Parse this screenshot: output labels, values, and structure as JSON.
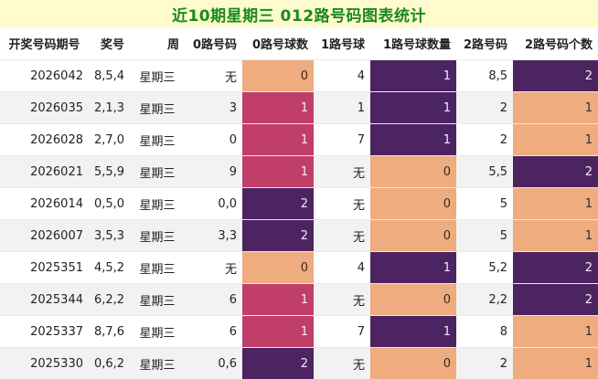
{
  "title": "近10期星期三 012路号码图表统计",
  "colors": {
    "peach": "#eeac7f",
    "rose": "#c13e68",
    "plum": "#4c2462",
    "title_text": "#1c8a1c",
    "title_bg": "#fffbcf"
  },
  "headers": [
    "开奖号码期号",
    "奖号",
    "周",
    "0路号码",
    "0路号球数",
    "1路号球",
    "1路号球数量",
    "2路号码",
    "2路号码个数"
  ],
  "rows": [
    {
      "issue": "2026042",
      "nums": "8,5,4",
      "week": "星期三",
      "r0": "无",
      "r0c": "0",
      "r1": "4",
      "r1c": "1",
      "r2": "8,5",
      "r2c": "2"
    },
    {
      "issue": "2026035",
      "nums": "2,1,3",
      "week": "星期三",
      "r0": "3",
      "r0c": "1",
      "r1": "1",
      "r1c": "1",
      "r2": "2",
      "r2c": "1"
    },
    {
      "issue": "2026028",
      "nums": "2,7,0",
      "week": "星期三",
      "r0": "0",
      "r0c": "1",
      "r1": "7",
      "r1c": "1",
      "r2": "2",
      "r2c": "1"
    },
    {
      "issue": "2026021",
      "nums": "5,5,9",
      "week": "星期三",
      "r0": "9",
      "r0c": "1",
      "r1": "无",
      "r1c": "0",
      "r2": "5,5",
      "r2c": "2"
    },
    {
      "issue": "2026014",
      "nums": "0,5,0",
      "week": "星期三",
      "r0": "0,0",
      "r0c": "2",
      "r1": "无",
      "r1c": "0",
      "r2": "5",
      "r2c": "1"
    },
    {
      "issue": "2026007",
      "nums": "3,5,3",
      "week": "星期三",
      "r0": "3,3",
      "r0c": "2",
      "r1": "无",
      "r1c": "0",
      "r2": "5",
      "r2c": "1"
    },
    {
      "issue": "2025351",
      "nums": "4,5,2",
      "week": "星期三",
      "r0": "无",
      "r0c": "0",
      "r1": "4",
      "r1c": "1",
      "r2": "5,2",
      "r2c": "2"
    },
    {
      "issue": "2025344",
      "nums": "6,2,2",
      "week": "星期三",
      "r0": "6",
      "r0c": "1",
      "r1": "无",
      "r1c": "0",
      "r2": "2,2",
      "r2c": "2"
    },
    {
      "issue": "2025337",
      "nums": "8,7,6",
      "week": "星期三",
      "r0": "6",
      "r0c": "1",
      "r1": "7",
      "r1c": "1",
      "r2": "8",
      "r2c": "1"
    },
    {
      "issue": "2025330",
      "nums": "0,6,2",
      "week": "星期三",
      "r0": "0,6",
      "r0c": "2",
      "r1": "无",
      "r1c": "0",
      "r2": "2",
      "r2c": "1"
    }
  ]
}
